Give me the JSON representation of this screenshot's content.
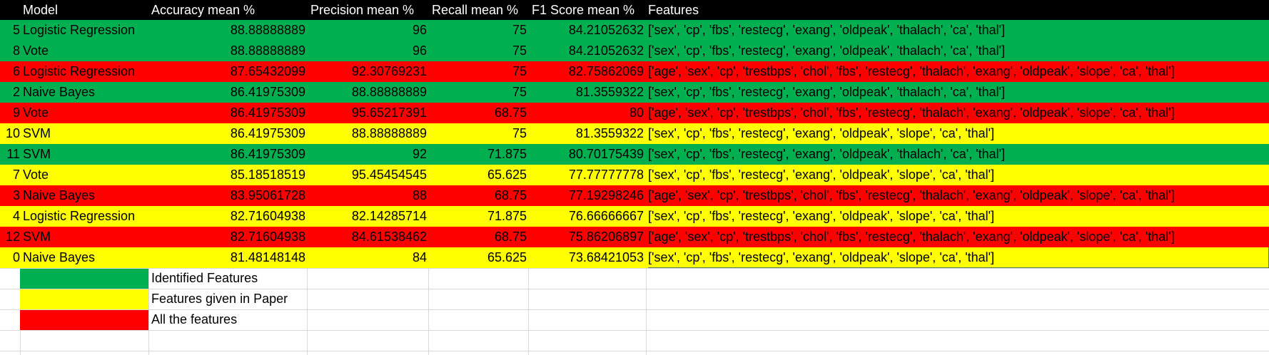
{
  "header": {
    "model": "Model",
    "accuracy": "Accuracy mean %",
    "precision": "Precision mean %",
    "recall": "Recall mean %",
    "f1": "F1 Score mean %",
    "features": "Features"
  },
  "rows": [
    {
      "idx": "5",
      "model": "Logistic Regression",
      "acc": "88.88888889",
      "pre": "96",
      "rec": "75",
      "f1": "84.21052632",
      "features": "['sex', 'cp', 'fbs', 'restecg', 'exang', 'oldpeak', 'thalach', 'ca', 'thal']",
      "color": "green"
    },
    {
      "idx": "8",
      "model": "Vote",
      "acc": "88.88888889",
      "pre": "96",
      "rec": "75",
      "f1": "84.21052632",
      "features": "['sex', 'cp', 'fbs', 'restecg', 'exang', 'oldpeak', 'thalach', 'ca', 'thal']",
      "color": "green"
    },
    {
      "idx": "6",
      "model": "Logistic Regression",
      "acc": "87.65432099",
      "pre": "92.30769231",
      "rec": "75",
      "f1": "82.75862069",
      "features": "['age', 'sex', 'cp', 'trestbps', 'chol', 'fbs', 'restecg', 'thalach', 'exang', 'oldpeak', 'slope', 'ca', 'thal']",
      "color": "red"
    },
    {
      "idx": "2",
      "model": "Naive Bayes",
      "acc": "86.41975309",
      "pre": "88.88888889",
      "rec": "75",
      "f1": "81.3559322",
      "features": "['sex', 'cp', 'fbs', 'restecg', 'exang', 'oldpeak', 'thalach', 'ca', 'thal']",
      "color": "green"
    },
    {
      "idx": "9",
      "model": "Vote",
      "acc": "86.41975309",
      "pre": "95.65217391",
      "rec": "68.75",
      "f1": "80",
      "features": "['age', 'sex', 'cp', 'trestbps', 'chol', 'fbs', 'restecg', 'thalach', 'exang', 'oldpeak', 'slope', 'ca', 'thal']",
      "color": "red"
    },
    {
      "idx": "10",
      "model": "SVM",
      "acc": "86.41975309",
      "pre": "88.88888889",
      "rec": "75",
      "f1": "81.3559322",
      "features": "['sex', 'cp', 'fbs', 'restecg', 'exang', 'oldpeak', 'slope', 'ca', 'thal']",
      "color": "yellow"
    },
    {
      "idx": "11",
      "model": "SVM",
      "acc": "86.41975309",
      "pre": "92",
      "rec": "71.875",
      "f1": "80.70175439",
      "features": "['sex', 'cp', 'fbs', 'restecg', 'exang', 'oldpeak', 'thalach', 'ca', 'thal']",
      "color": "green"
    },
    {
      "idx": "7",
      "model": "Vote",
      "acc": "85.18518519",
      "pre": "95.45454545",
      "rec": "65.625",
      "f1": "77.77777778",
      "features": "['sex', 'cp', 'fbs', 'restecg', 'exang', 'oldpeak', 'slope', 'ca', 'thal']",
      "color": "yellow"
    },
    {
      "idx": "3",
      "model": "Naive Bayes",
      "acc": "83.95061728",
      "pre": "88",
      "rec": "68.75",
      "f1": "77.19298246",
      "features": "['age', 'sex', 'cp', 'trestbps', 'chol', 'fbs', 'restecg', 'thalach', 'exang', 'oldpeak', 'slope', 'ca', 'thal']",
      "color": "red"
    },
    {
      "idx": "4",
      "model": "Logistic Regression",
      "acc": "82.71604938",
      "pre": "82.14285714",
      "rec": "71.875",
      "f1": "76.66666667",
      "features": "['sex', 'cp', 'fbs', 'restecg', 'exang', 'oldpeak', 'slope', 'ca', 'thal']",
      "color": "yellow"
    },
    {
      "idx": "12",
      "model": "SVM",
      "acc": "82.71604938",
      "pre": "84.61538462",
      "rec": "68.75",
      "f1": "75.86206897",
      "features": "['age', 'sex', 'cp', 'trestbps', 'chol', 'fbs', 'restecg', 'thalach', 'exang', 'oldpeak', 'slope', 'ca', 'thal']",
      "color": "red"
    },
    {
      "idx": "0",
      "model": "Naive Bayes",
      "acc": "81.48148148",
      "pre": "84",
      "rec": "65.625",
      "f1": "73.68421053",
      "features": "['sex', 'cp', 'fbs', 'restecg', 'exang', 'oldpeak', 'slope', 'ca', 'thal']",
      "color": "yellow"
    }
  ],
  "legend": [
    {
      "label": "Identified Features",
      "color": "green"
    },
    {
      "label": "Features given in Paper",
      "color": "yellow"
    },
    {
      "label": "All the features",
      "color": "red"
    }
  ],
  "colors": {
    "green": "#00b050",
    "yellow": "#ffff00",
    "red": "#ff0000",
    "header": "#000000"
  }
}
